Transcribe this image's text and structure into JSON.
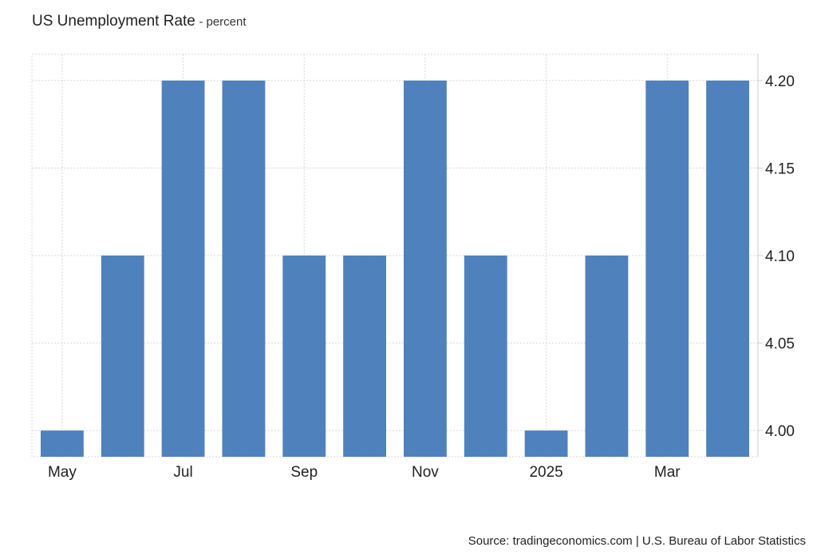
{
  "title": "US Unemployment Rate",
  "subtitle": "- percent",
  "source": "Source: tradingeconomics.com | U.S. Bureau of Labor Statistics",
  "colors": {
    "bar": "#4f81bd",
    "grid": "#d8d8d8",
    "axis": "#cfcfcf"
  },
  "chart_data": {
    "type": "bar",
    "title": "US Unemployment Rate",
    "subtitle": "- percent",
    "categories": [
      "May",
      "",
      "Jul",
      "",
      "Sep",
      "",
      "Nov",
      "",
      "2025",
      "",
      "Mar",
      ""
    ],
    "x_tick_labels": [
      "May",
      "Jul",
      "Sep",
      "Nov",
      "2025",
      "Mar"
    ],
    "values": [
      4.0,
      4.1,
      4.2,
      4.2,
      4.1,
      4.1,
      4.2,
      4.1,
      4.0,
      4.1,
      4.2,
      4.2
    ],
    "y_tick_labels": [
      "4.00",
      "4.05",
      "4.10",
      "4.15",
      "4.20"
    ],
    "ylim": [
      3.985,
      4.215
    ],
    "y_axis_side": "right",
    "grid": true,
    "xlabel": "",
    "ylabel": ""
  }
}
